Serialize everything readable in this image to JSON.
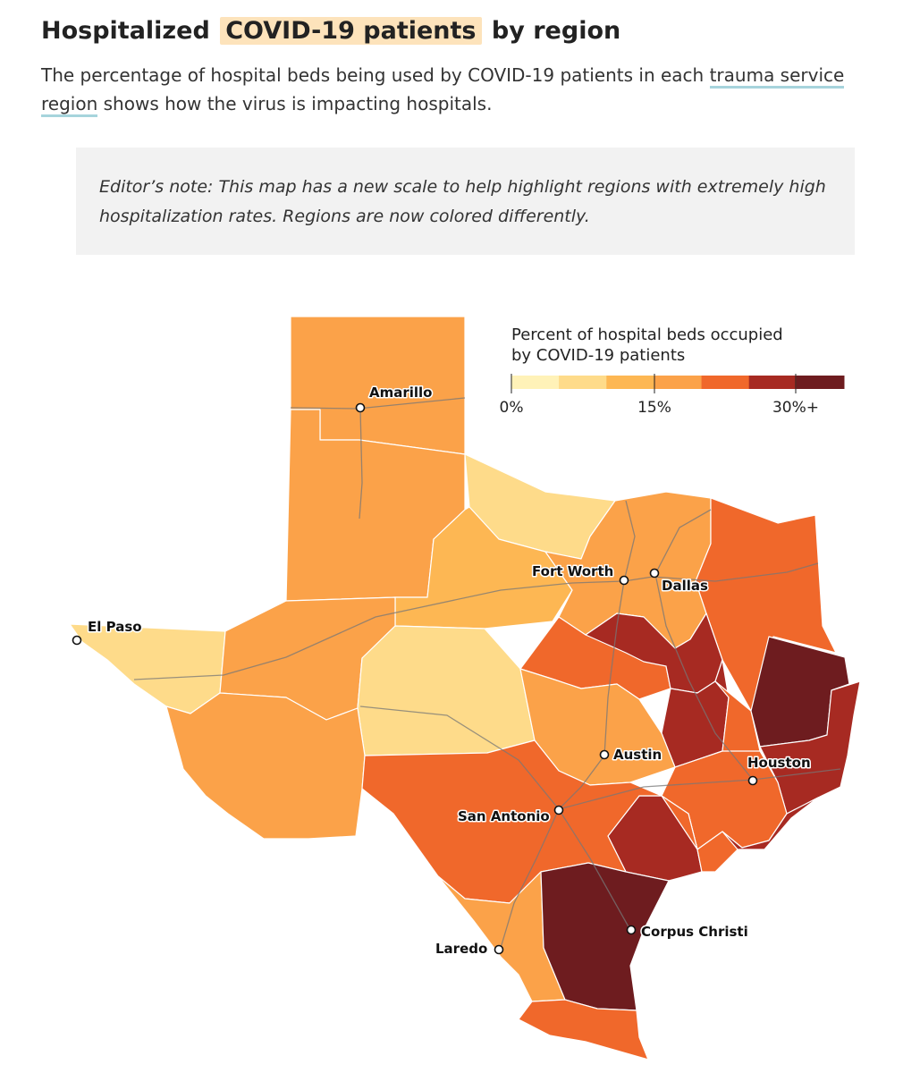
{
  "header": {
    "title_before": "Hospitalized",
    "title_highlight": "COVID-19 patients",
    "title_after": "by region",
    "description_before": "The percentage of hospital beds being used by COVID-19 patients in each",
    "description_link": "trauma service region",
    "description_after": "shows how the virus is impacting hospitals."
  },
  "editors_note": {
    "line1": "Editor’s note: This map has a new scale to help highlight regions with extremely high",
    "line2": "hospitalization rates. Regions are now colored differently."
  },
  "legend": {
    "title_line1": "Percent of hospital beds occupied",
    "title_line2": "by COVID-19 patients",
    "tick_labels": [
      "0%",
      "15%",
      "30%+"
    ],
    "colors": [
      "#fff2b8",
      "#fedb8a",
      "#fdb753",
      "#fba249",
      "#f0682b",
      "#a72a22",
      "#6e1c1f"
    ]
  },
  "map": {
    "colors": {
      "light_yellow": "#fff2b8",
      "pale_orange": "#fedb8a",
      "light_orange": "#fdb753",
      "orange": "#fba249",
      "dark_orange": "#f0682b",
      "red": "#a72a22",
      "dark_red": "#6e1c1f"
    },
    "cities": {
      "amarillo": "Amarillo",
      "el_paso": "El Paso",
      "fort_worth": "Fort Worth",
      "dallas": "Dallas",
      "austin": "Austin",
      "houston": "Houston",
      "san_antonio": "San Antonio",
      "corpus_christi": "Corpus Christi",
      "laredo": "Laredo"
    }
  }
}
